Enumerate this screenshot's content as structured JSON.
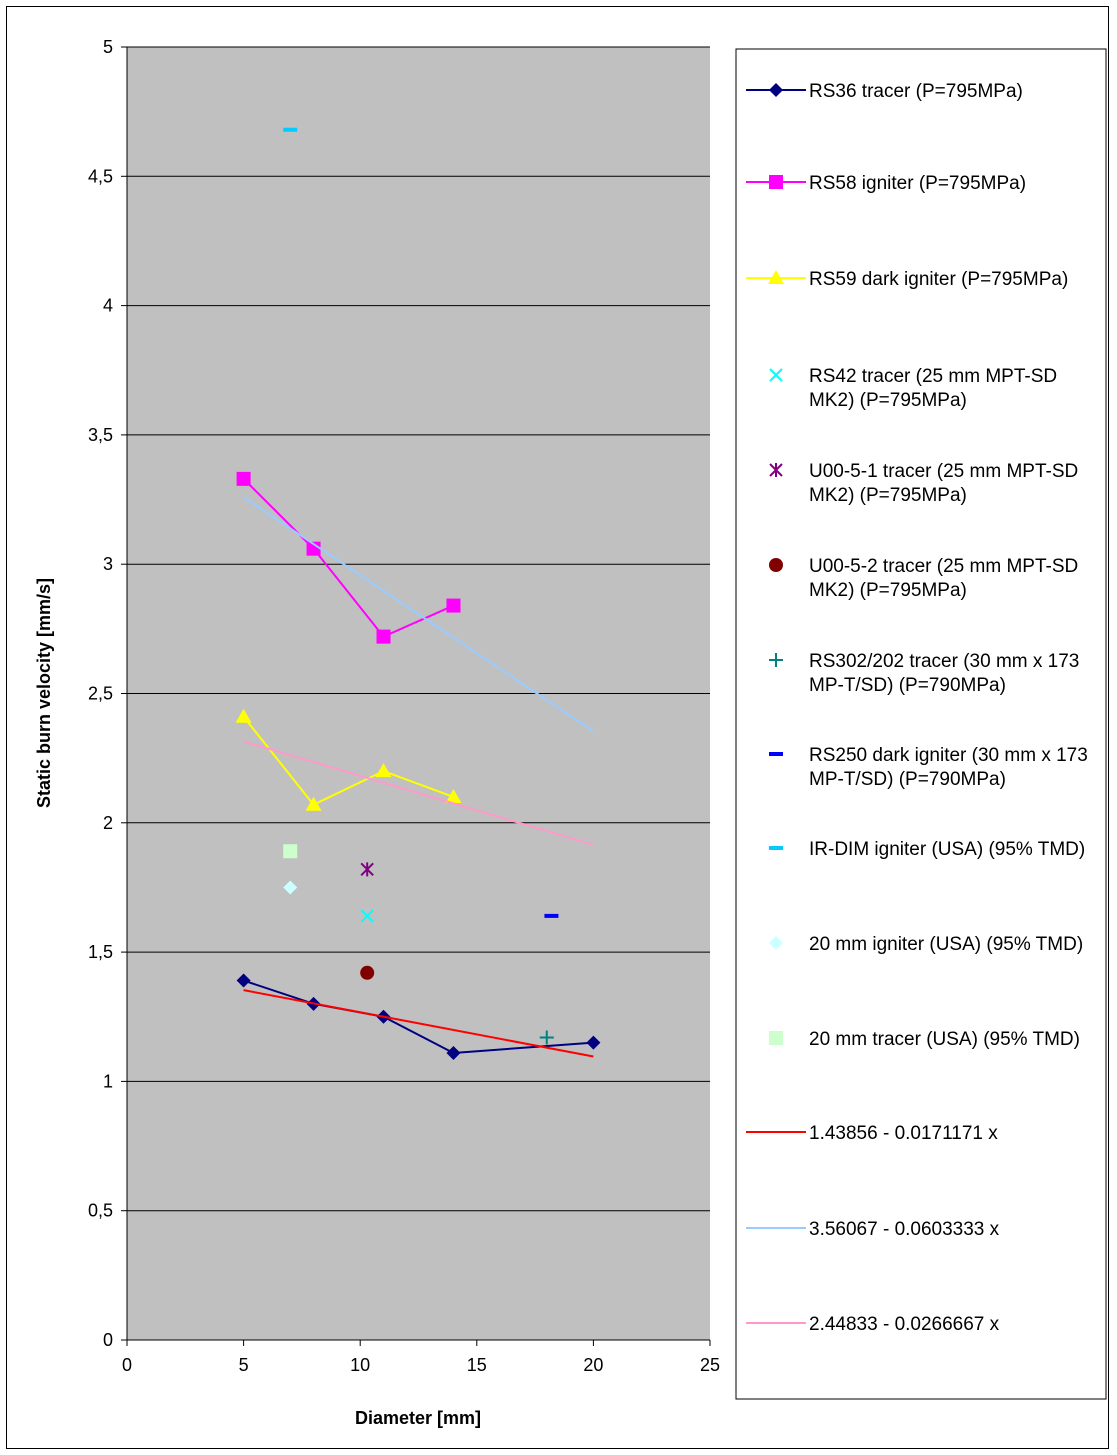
{
  "chart_data": {
    "type": "scatter",
    "xlabel": "Diameter [mm]",
    "ylabel": "Static burn velocity [mm/s]",
    "xlim": [
      0,
      25
    ],
    "ylim": [
      0,
      5
    ],
    "x_ticks": [
      "0",
      "5",
      "10",
      "15",
      "20",
      "25"
    ],
    "y_ticks": [
      "0",
      "0,5",
      "1",
      "1,5",
      "2",
      "2,5",
      "3",
      "3,5",
      "4",
      "4,5",
      "5"
    ],
    "grid": "horizontal",
    "legend_position": "right",
    "plot_background": "#c0c0c0",
    "series": [
      {
        "name": "RS36 tracer (P=795MPa)",
        "kind": "line-marker",
        "marker": "diamond",
        "color": "#000080",
        "points": [
          [
            5,
            1.39
          ],
          [
            8,
            1.3
          ],
          [
            11,
            1.25
          ],
          [
            14,
            1.11
          ],
          [
            20,
            1.15
          ]
        ]
      },
      {
        "name": "RS58 igniter (P=795MPa)",
        "kind": "line-marker",
        "marker": "square",
        "color": "#ff00ff",
        "points": [
          [
            5,
            3.33
          ],
          [
            8,
            3.06
          ],
          [
            11,
            2.72
          ],
          [
            14,
            2.84
          ]
        ]
      },
      {
        "name": "RS59 dark igniter (P=795MPa)",
        "kind": "line-marker",
        "marker": "triangle",
        "color": "#ffff00",
        "points": [
          [
            5,
            2.41
          ],
          [
            8,
            2.07
          ],
          [
            11,
            2.2
          ],
          [
            14,
            2.1
          ]
        ]
      },
      {
        "name": "RS42 tracer (25 mm MPT-SD MK2) (P=795MPa)",
        "kind": "marker",
        "marker": "x",
        "color": "#00ffff",
        "points": [
          [
            10.3,
            1.64
          ]
        ]
      },
      {
        "name": "U00-5-1 tracer (25 mm MPT-SD MK2) (P=795MPa)",
        "kind": "marker",
        "marker": "star",
        "color": "#800080",
        "points": [
          [
            10.3,
            1.82
          ]
        ]
      },
      {
        "name": "U00-5-2 tracer (25 mm MPT-SD MK2) (P=795MPa)",
        "kind": "marker",
        "marker": "circle",
        "color": "#800000",
        "points": [
          [
            10.3,
            1.42
          ]
        ]
      },
      {
        "name": "RS302/202 tracer (30 mm x 173 MP-T/SD) (P=790MPa)",
        "kind": "marker",
        "marker": "plus",
        "color": "#008080",
        "points": [
          [
            18,
            1.17
          ]
        ]
      },
      {
        "name": "RS250 dark igniter (30 mm x 173 MP-T/SD) (P=790MPa)",
        "kind": "marker",
        "marker": "dash",
        "color": "#0000ff",
        "points": [
          [
            18.2,
            1.64
          ]
        ]
      },
      {
        "name": "IR-DIM igniter (USA) (95% TMD)",
        "kind": "marker",
        "marker": "dash",
        "color": "#00ccff",
        "points": [
          [
            7,
            4.68
          ]
        ]
      },
      {
        "name": "20 mm igniter (USA) (95% TMD)",
        "kind": "marker",
        "marker": "diamond",
        "color": "#ccffff",
        "points": [
          [
            7,
            1.75
          ]
        ]
      },
      {
        "name": "20 mm tracer (USA) (95% TMD)",
        "kind": "marker",
        "marker": "square",
        "color": "#ccffcc",
        "points": [
          [
            7,
            1.89
          ]
        ]
      },
      {
        "name": "1.43856 - 0.0171171 x",
        "kind": "line",
        "color": "#ff0000",
        "points": [
          [
            5,
            1.35298
          ],
          [
            20,
            1.09622
          ]
        ]
      },
      {
        "name": "3.56067 - 0.0603333 x",
        "kind": "line",
        "color": "#99ccff",
        "points": [
          [
            5,
            3.259
          ],
          [
            20,
            2.354
          ]
        ]
      },
      {
        "name": "2.44833 - 0.0266667 x",
        "kind": "line",
        "color": "#ff99cc",
        "points": [
          [
            5,
            2.315
          ],
          [
            20,
            1.915
          ]
        ]
      }
    ]
  }
}
